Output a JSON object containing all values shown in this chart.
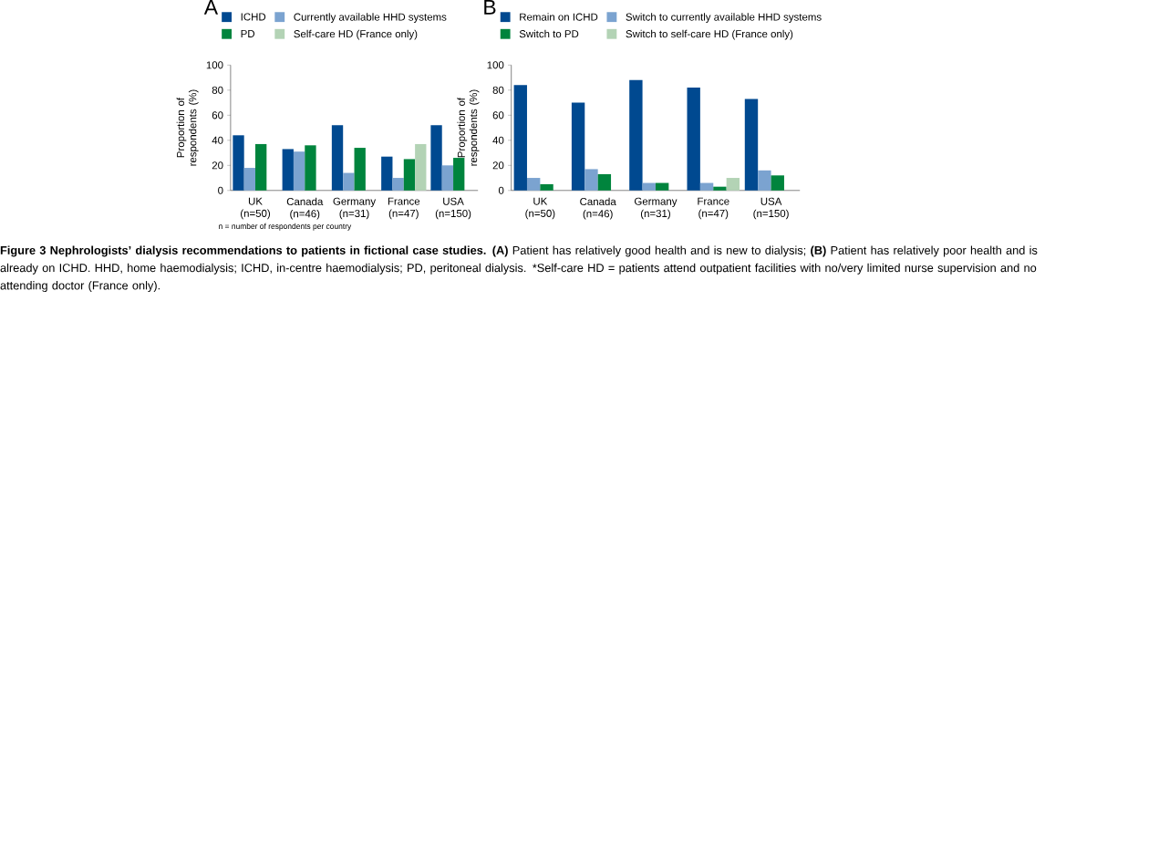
{
  "chart_data": [
    {
      "type": "bar",
      "title": "A",
      "ylabel": "Proportion of respondents (%)",
      "categories": [
        "UK (n=50)",
        "Canada (n=46)",
        "Germany (n=31)",
        "France (n=47)",
        "USA (n=150)"
      ],
      "series": [
        {
          "name": "ICHD",
          "color": "#004990",
          "values": [
            44,
            33,
            52,
            27,
            52
          ]
        },
        {
          "name": "Currently available HHD systems",
          "color": "#7ba3d0",
          "values": [
            18,
            31,
            14,
            10,
            20
          ]
        },
        {
          "name": "PD",
          "color": "#00843d",
          "values": [
            37,
            36,
            34,
            25,
            26
          ]
        },
        {
          "name": "Self-care HD (France only)",
          "color": "#b3d3b5",
          "values": [
            null,
            null,
            null,
            37,
            null
          ]
        }
      ],
      "ylim": [
        0,
        100
      ],
      "yticks": [
        0,
        20,
        40,
        60,
        80,
        100
      ],
      "legend": "top",
      "grid": false,
      "annotations": [
        "n = number of respondents per country",
        "**Figure 3 Nephrologists’ dialysis recommendations to patients in fictional case studies. (A)** Patient has relatively good health and is new to dialysis; **(B)** Patient has relatively poor health and is already on ICHD. HHD, home haemodialysis; ICHD, in-centre haemodialysis; PD, peritoneal dialysis. *Self-care HD = patients attend outpatient facilities with no/very limited nurse supervision and no attending doctor (France only)."
      ]
    },
    {
      "type": "bar",
      "title": "B",
      "ylabel": "Proportion of respondents (%)",
      "categories": [
        "UK (n=50)",
        "Canada (n=46)",
        "Germany (n=31)",
        "France (n=47)",
        "USA (n=150)"
      ],
      "series": [
        {
          "name": "Remain on ICHD",
          "color": "#004990",
          "values": [
            84,
            70,
            88,
            82,
            73
          ]
        },
        {
          "name": "Switch to currently available HHD systems",
          "color": "#7ba3d0",
          "values": [
            10,
            17,
            6,
            6,
            16
          ]
        },
        {
          "name": "Switch to PD",
          "color": "#00843d",
          "values": [
            5,
            13,
            6,
            3,
            12
          ]
        },
        {
          "name": "Switch to self-care HD (France only)",
          "color": "#b3d3b5",
          "values": [
            null,
            null,
            null,
            10,
            null
          ]
        }
      ],
      "ylim": [
        0,
        100
      ],
      "yticks": [
        0,
        20,
        40,
        60,
        80,
        100
      ],
      "legend": "top",
      "grid": false
    }
  ]
}
